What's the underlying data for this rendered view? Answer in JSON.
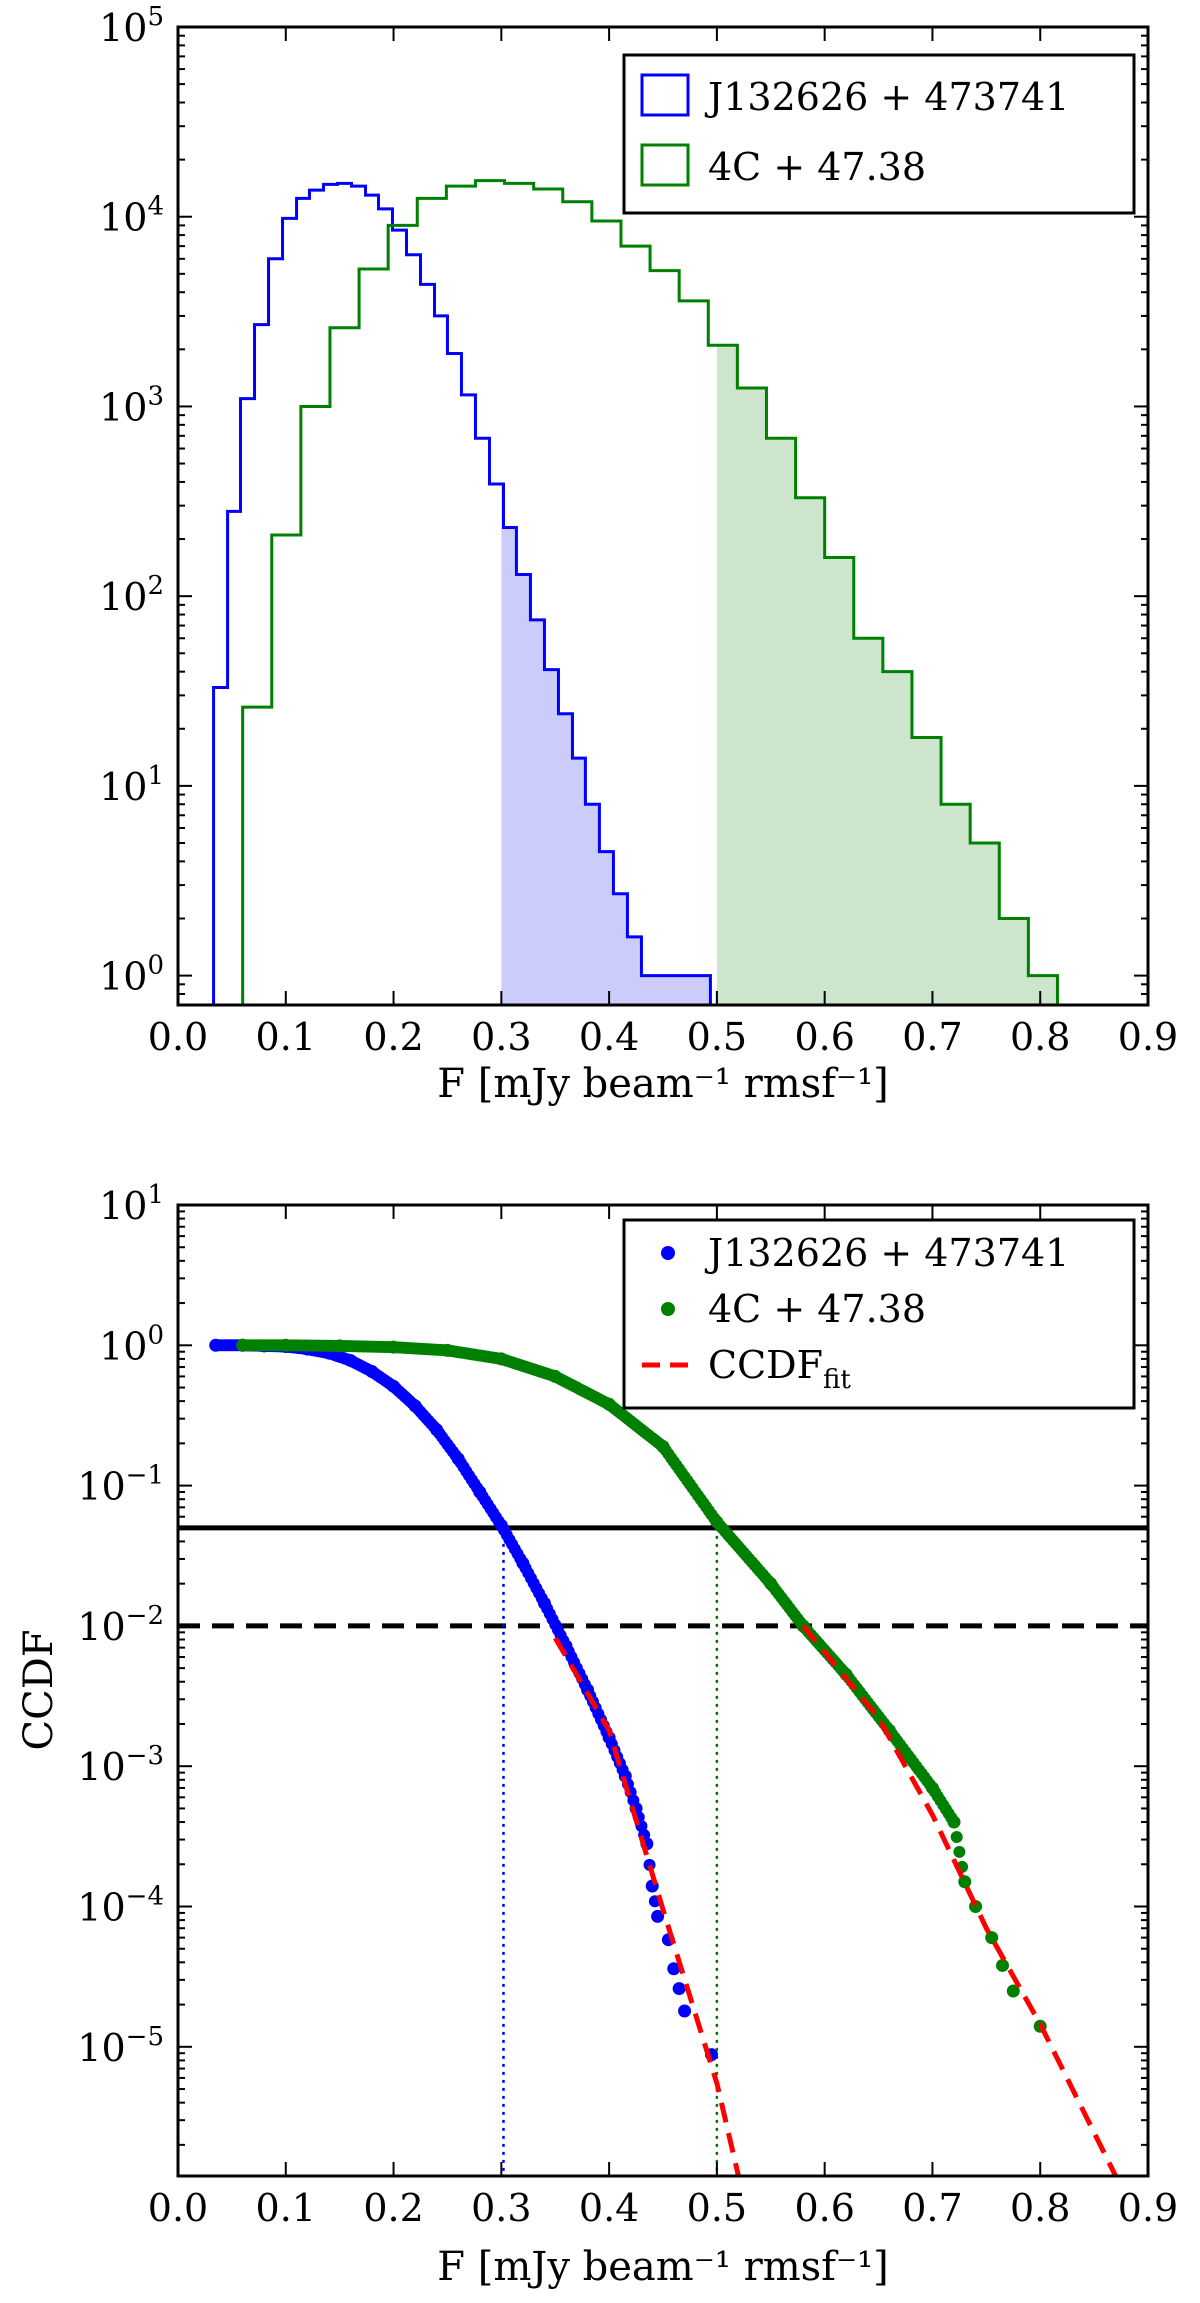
{
  "chart_data": [
    {
      "type": "histogram",
      "xlabel": "F [mJy beam⁻¹ rmsf⁻¹]",
      "ylabel": "",
      "xlim": [
        0.0,
        0.9
      ],
      "ylim": [
        0.7,
        100000
      ],
      "yscale": "log",
      "x_ticks": [
        "0.0",
        "0.1",
        "0.2",
        "0.3",
        "0.4",
        "0.5",
        "0.6",
        "0.7",
        "0.8",
        "0.9"
      ],
      "y_ticks": [
        {
          "base": "10",
          "exp": "0",
          "value": 1
        },
        {
          "base": "10",
          "exp": "1",
          "value": 10
        },
        {
          "base": "10",
          "exp": "2",
          "value": 100
        },
        {
          "base": "10",
          "exp": "3",
          "value": 1000
        },
        {
          "base": "10",
          "exp": "4",
          "value": 10000
        },
        {
          "base": "10",
          "exp": "5",
          "value": 100000
        }
      ],
      "legend_position": "top-right",
      "series": [
        {
          "name": "J132626 + 473741",
          "color": "#0000ff",
          "fill_color": "#ccccfa",
          "shade_from": 0.3,
          "bin_edges": [
            0.033,
            0.046,
            0.058,
            0.071,
            0.084,
            0.097,
            0.11,
            0.122,
            0.135,
            0.148,
            0.161,
            0.174,
            0.186,
            0.199,
            0.212,
            0.225,
            0.238,
            0.25,
            0.263,
            0.276,
            0.289,
            0.302,
            0.314,
            0.327,
            0.34,
            0.353,
            0.366,
            0.378,
            0.391,
            0.404,
            0.417,
            0.43,
            0.442,
            0.455,
            0.468,
            0.481,
            0.494
          ],
          "counts": [
            33,
            280,
            1100,
            2700,
            6000,
            9800,
            12500,
            13800,
            14800,
            15000,
            14500,
            13000,
            11000,
            8500,
            6300,
            4400,
            3000,
            1900,
            1150,
            680,
            390,
            230,
            130,
            75,
            41,
            24,
            14,
            8,
            4.5,
            2.7,
            1.6,
            1,
            1,
            1,
            1,
            1
          ]
        },
        {
          "name": "4C + 47.38",
          "color": "#008000",
          "fill_color": "#cce5cc",
          "shade_from": 0.5,
          "bin_edges": [
            0.06,
            0.087,
            0.114,
            0.141,
            0.168,
            0.195,
            0.222,
            0.249,
            0.276,
            0.303,
            0.33,
            0.357,
            0.384,
            0.411,
            0.438,
            0.465,
            0.492,
            0.519,
            0.546,
            0.573,
            0.6,
            0.627,
            0.654,
            0.681,
            0.708,
            0.735,
            0.762,
            0.789,
            0.816
          ],
          "counts": [
            26,
            210,
            1000,
            2600,
            5300,
            9000,
            12500,
            14500,
            15500,
            15000,
            14000,
            12000,
            9500,
            7000,
            5200,
            3600,
            2100,
            1250,
            680,
            330,
            160,
            60,
            40,
            18,
            8,
            5,
            2,
            1
          ]
        }
      ]
    },
    {
      "type": "scatter",
      "xlabel": "F [mJy beam⁻¹ rmsf⁻¹]",
      "ylabel": "CCDF",
      "xlim": [
        0.0,
        0.9
      ],
      "ylim": [
        1.2e-06,
        10
      ],
      "yscale": "log",
      "x_ticks": [
        "0.0",
        "0.1",
        "0.2",
        "0.3",
        "0.4",
        "0.5",
        "0.6",
        "0.7",
        "0.8",
        "0.9"
      ],
      "y_ticks": [
        {
          "base": "10",
          "exp": "−5",
          "value": 1e-05
        },
        {
          "base": "10",
          "exp": "−4",
          "value": 0.0001
        },
        {
          "base": "10",
          "exp": "−3",
          "value": 0.001
        },
        {
          "base": "10",
          "exp": "−2",
          "value": 0.01
        },
        {
          "base": "10",
          "exp": "−1",
          "value": 0.1
        },
        {
          "base": "10",
          "exp": "0",
          "value": 1
        },
        {
          "base": "10",
          "exp": "1",
          "value": 10
        }
      ],
      "legend_position": "top-right",
      "hlines": [
        {
          "y": 0.05,
          "style": "solid",
          "color": "#000000"
        },
        {
          "y": 0.01,
          "style": "dashed",
          "color": "#000000"
        }
      ],
      "vlines": [
        {
          "x": 0.302,
          "style": "dotted",
          "color": "#0000ff",
          "y_top": 0.05
        },
        {
          "x": 0.5,
          "style": "dotted",
          "color": "#008000",
          "y_top": 0.05
        }
      ],
      "series": [
        {
          "name": "J132626 + 473741",
          "color": "#0000ff",
          "points": [
            [
              0.035,
              1.0
            ],
            [
              0.06,
              1.0
            ],
            [
              0.08,
              0.99
            ],
            [
              0.1,
              0.98
            ],
            [
              0.12,
              0.94
            ],
            [
              0.14,
              0.88
            ],
            [
              0.16,
              0.78
            ],
            [
              0.18,
              0.65
            ],
            [
              0.2,
              0.51
            ],
            [
              0.22,
              0.37
            ],
            [
              0.24,
              0.25
            ],
            [
              0.26,
              0.155
            ],
            [
              0.28,
              0.09
            ],
            [
              0.3,
              0.052
            ],
            [
              0.32,
              0.028
            ],
            [
              0.34,
              0.0145
            ],
            [
              0.36,
              0.0072
            ],
            [
              0.38,
              0.0035
            ],
            [
              0.4,
              0.0016
            ],
            [
              0.415,
              0.00085
            ],
            [
              0.425,
              0.0005
            ],
            [
              0.435,
              0.00028
            ],
            [
              0.44,
              0.00014
            ],
            [
              0.445,
              8.5e-05
            ],
            [
              0.455,
              5.8e-05
            ],
            [
              0.46,
              3.6e-05
            ],
            [
              0.465,
              2.6e-05
            ],
            [
              0.47,
              1.8e-05
            ],
            [
              0.495,
              8.8e-06
            ]
          ]
        },
        {
          "name": "4C + 47.38",
          "color": "#008000",
          "points": [
            [
              0.06,
              1.0
            ],
            [
              0.1,
              1.0
            ],
            [
              0.15,
              0.99
            ],
            [
              0.2,
              0.97
            ],
            [
              0.25,
              0.92
            ],
            [
              0.3,
              0.8
            ],
            [
              0.35,
              0.6
            ],
            [
              0.4,
              0.38
            ],
            [
              0.45,
              0.19
            ],
            [
              0.5,
              0.055
            ],
            [
              0.55,
              0.02
            ],
            [
              0.58,
              0.01
            ],
            [
              0.62,
              0.0045
            ],
            [
              0.66,
              0.0018
            ],
            [
              0.7,
              0.0007
            ],
            [
              0.72,
              0.0004
            ],
            [
              0.73,
              0.00015
            ],
            [
              0.74,
              0.0001
            ],
            [
              0.755,
              6e-05
            ],
            [
              0.765,
              3.8e-05
            ],
            [
              0.775,
              2.5e-05
            ],
            [
              0.8,
              1.4e-05
            ]
          ]
        },
        {
          "name": "CCDF_fit",
          "label_base": "CCDF",
          "label_sub": "fit",
          "color": "#ff0000",
          "style": "dashed",
          "fits": [
            [
              [
                0.35,
                0.0082
              ],
              [
                0.4,
                0.0018
              ],
              [
                0.45,
                9.5e-05
              ],
              [
                0.5,
                5.5e-06
              ],
              [
                0.52,
                1.2e-06
              ]
            ],
            [
              [
                0.58,
                0.01
              ],
              [
                0.65,
                0.0022
              ],
              [
                0.7,
                0.00045
              ],
              [
                0.75,
                7e-05
              ],
              [
                0.8,
                1.45e-05
              ],
              [
                0.87,
                1.2e-06
              ]
            ]
          ]
        }
      ]
    }
  ]
}
